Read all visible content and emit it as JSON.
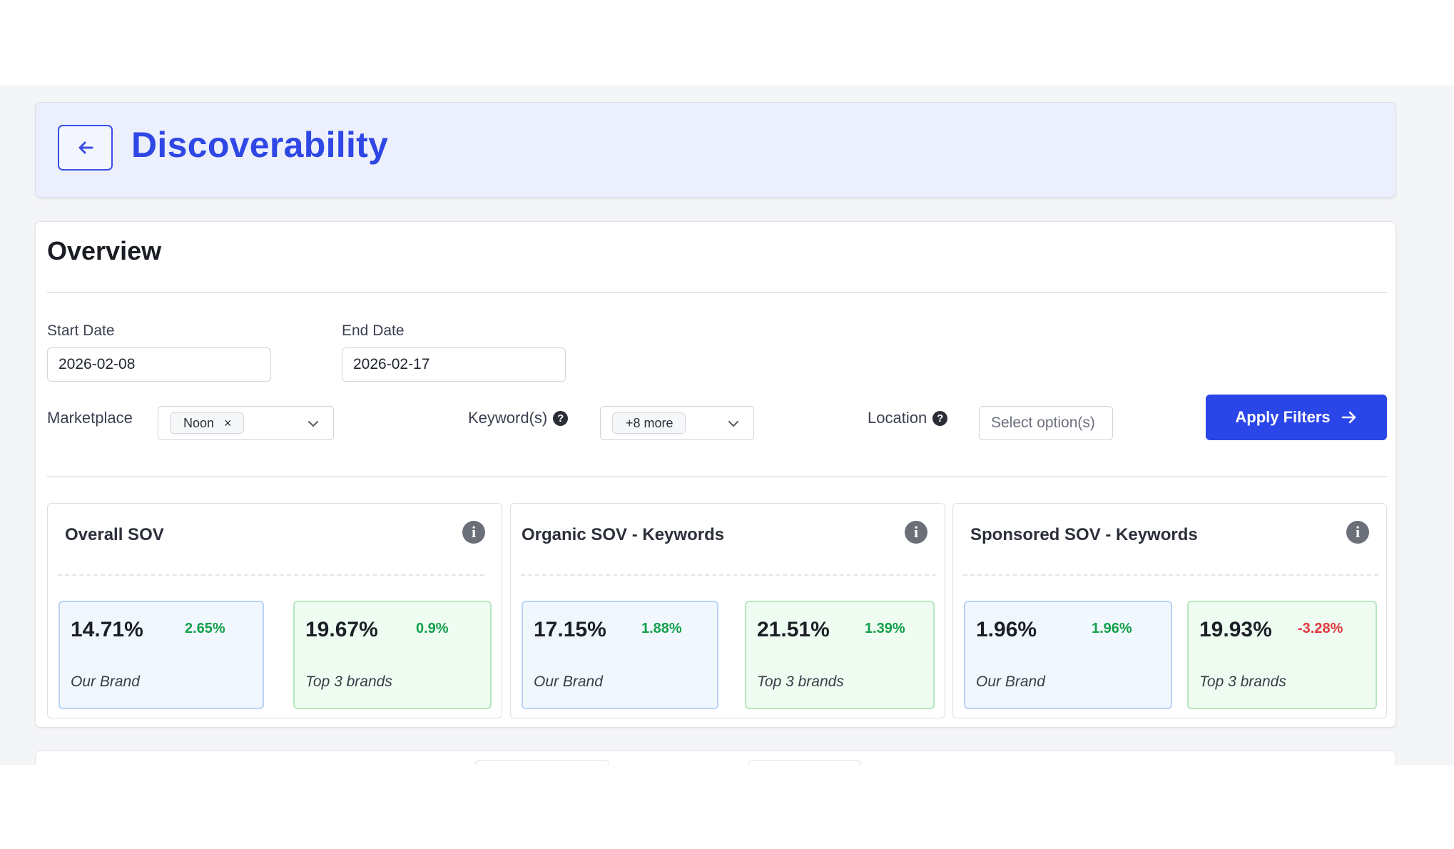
{
  "header": {
    "title": "Discoverability"
  },
  "overview": {
    "title": "Overview",
    "start_date": {
      "label": "Start Date",
      "value": "2026-02-08"
    },
    "end_date": {
      "label": "End Date",
      "value": "2026-02-17"
    },
    "marketplace": {
      "label": "Marketplace",
      "selected": "Noon"
    },
    "keywords": {
      "label": "Keyword(s)",
      "selected": "+8 more"
    },
    "location": {
      "label": "Location",
      "placeholder": "Select option(s)"
    },
    "apply_label": "Apply Filters"
  },
  "panels": [
    {
      "title": "Overall SOV",
      "metrics": [
        {
          "value": "14.71%",
          "change": "2.65%",
          "label": "Our Brand",
          "trend": "up"
        },
        {
          "value": "19.67%",
          "change": "0.9%",
          "label": "Top 3 brands",
          "trend": "up"
        }
      ]
    },
    {
      "title": "Organic SOV - Keywords",
      "metrics": [
        {
          "value": "17.15%",
          "change": "1.88%",
          "label": "Our Brand",
          "trend": "up"
        },
        {
          "value": "21.51%",
          "change": "1.39%",
          "label": "Top 3 brands",
          "trend": "up"
        }
      ]
    },
    {
      "title": "Sponsored SOV - Keywords",
      "metrics": [
        {
          "value": "1.96%",
          "change": "1.96%",
          "label": "Our Brand",
          "trend": "up"
        },
        {
          "value": "19.93%",
          "change": "-3.28%",
          "label": "Top 3 brands",
          "trend": "down"
        }
      ]
    }
  ],
  "colors": {
    "accent": "#2a46e8",
    "title_blue": "#2f47e5",
    "positive": "#12a04a",
    "negative": "#e0383d"
  }
}
